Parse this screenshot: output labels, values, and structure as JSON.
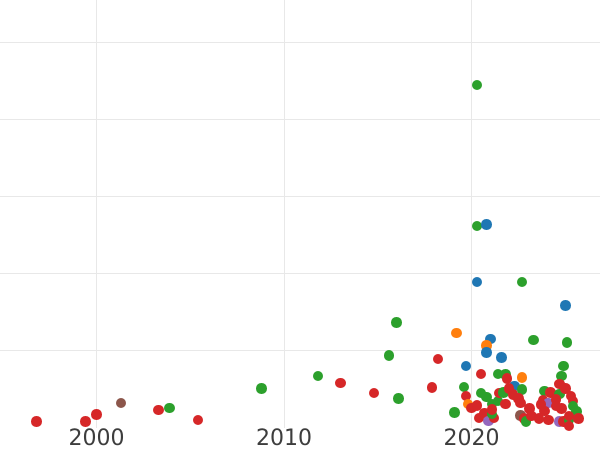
{
  "chart_data": {
    "type": "scatter",
    "grid": true,
    "legend": "none",
    "x_axis": {
      "ticks": [
        2000,
        2010,
        2020
      ],
      "tick_labels": [
        "2000",
        "2010",
        "2020"
      ],
      "visible_range": [
        1994.9,
        2026.9
      ]
    },
    "y_axis": {
      "tick_labels": [],
      "gridline_values": [
        1,
        2,
        3,
        4,
        5
      ],
      "visible_range": [
        -0.3,
        5.55
      ]
    },
    "colors": {
      "blue": "#1f77b4",
      "orange": "#ff7f0e",
      "green": "#2ca02c",
      "red": "#d62728",
      "purple": "#9467bd",
      "brown": "#8c564b"
    },
    "points": [
      {
        "x": 1996.8,
        "y": 0.07,
        "c": "red"
      },
      {
        "x": 1999.4,
        "y": 0.07,
        "c": "red"
      },
      {
        "x": 2000.0,
        "y": 0.16,
        "c": "red"
      },
      {
        "x": 2001.3,
        "y": 0.31,
        "c": "brown"
      },
      {
        "x": 2003.3,
        "y": 0.22,
        "c": "red"
      },
      {
        "x": 2003.9,
        "y": 0.25,
        "c": "green"
      },
      {
        "x": 2005.4,
        "y": 0.09,
        "c": "red"
      },
      {
        "x": 2008.8,
        "y": 0.5,
        "c": "green"
      },
      {
        "x": 2011.8,
        "y": 0.66,
        "c": "green"
      },
      {
        "x": 2013.0,
        "y": 0.57,
        "c": "red"
      },
      {
        "x": 2014.8,
        "y": 0.44,
        "c": "red"
      },
      {
        "x": 2016.1,
        "y": 0.37,
        "c": "green"
      },
      {
        "x": 2016.0,
        "y": 1.36,
        "c": "green"
      },
      {
        "x": 2015.6,
        "y": 0.93,
        "c": "green"
      },
      {
        "x": 2017.9,
        "y": 0.51,
        "c": "red"
      },
      {
        "x": 2018.2,
        "y": 0.88,
        "c": "red"
      },
      {
        "x": 2020.3,
        "y": 4.44,
        "c": "green"
      },
      {
        "x": 2020.3,
        "y": 2.61,
        "c": "green"
      },
      {
        "x": 2020.8,
        "y": 2.63,
        "c": "blue"
      },
      {
        "x": 2020.3,
        "y": 1.88,
        "c": "blue"
      },
      {
        "x": 2022.7,
        "y": 1.88,
        "c": "green"
      },
      {
        "x": 2025.0,
        "y": 1.58,
        "c": "blue"
      },
      {
        "x": 2023.3,
        "y": 1.13,
        "c": "green"
      },
      {
        "x": 2025.1,
        "y": 1.1,
        "c": "green"
      },
      {
        "x": 2019.2,
        "y": 1.22,
        "c": "orange"
      },
      {
        "x": 2021.0,
        "y": 1.14,
        "c": "blue"
      },
      {
        "x": 2020.8,
        "y": 1.06,
        "c": "orange"
      },
      {
        "x": 2020.8,
        "y": 0.97,
        "c": "blue"
      },
      {
        "x": 2021.6,
        "y": 0.9,
        "c": "blue"
      },
      {
        "x": 2019.7,
        "y": 0.79,
        "c": "blue"
      },
      {
        "x": 2024.9,
        "y": 0.79,
        "c": "green"
      },
      {
        "x": 2024.8,
        "y": 0.66,
        "c": "green"
      },
      {
        "x": 2024.7,
        "y": 0.56,
        "c": "red"
      },
      {
        "x": 2019.6,
        "y": 0.52,
        "c": "green"
      },
      {
        "x": 2019.7,
        "y": 0.4,
        "c": "red"
      },
      {
        "x": 2019.8,
        "y": 0.3,
        "c": "orange"
      },
      {
        "x": 2019.1,
        "y": 0.19,
        "c": "green"
      },
      {
        "x": 2020.5,
        "y": 0.69,
        "c": "red"
      },
      {
        "x": 2021.4,
        "y": 0.69,
        "c": "green"
      },
      {
        "x": 2021.8,
        "y": 0.68,
        "c": "green"
      },
      {
        "x": 2020.5,
        "y": 0.44,
        "c": "green"
      },
      {
        "x": 2020.8,
        "y": 0.39,
        "c": "green"
      },
      {
        "x": 2020.0,
        "y": 0.25,
        "c": "red"
      },
      {
        "x": 2020.3,
        "y": 0.28,
        "c": "red"
      },
      {
        "x": 2020.4,
        "y": 0.12,
        "c": "red"
      },
      {
        "x": 2020.7,
        "y": 0.18,
        "c": "red"
      },
      {
        "x": 2020.9,
        "y": 0.08,
        "c": "purple"
      },
      {
        "x": 2021.2,
        "y": 0.12,
        "c": "red"
      },
      {
        "x": 2021.1,
        "y": 0.17,
        "c": "green"
      },
      {
        "x": 2021.1,
        "y": 0.3,
        "c": "green"
      },
      {
        "x": 2021.4,
        "y": 0.34,
        "c": "green"
      },
      {
        "x": 2021.1,
        "y": 0.23,
        "c": "red"
      },
      {
        "x": 2021.5,
        "y": 0.44,
        "c": "red"
      },
      {
        "x": 2021.7,
        "y": 0.45,
        "c": "green"
      },
      {
        "x": 2021.9,
        "y": 0.63,
        "c": "red"
      },
      {
        "x": 2022.7,
        "y": 0.64,
        "c": "orange"
      },
      {
        "x": 2022.3,
        "y": 0.53,
        "c": "blue"
      },
      {
        "x": 2022.7,
        "y": 0.49,
        "c": "green"
      },
      {
        "x": 2022.0,
        "y": 0.5,
        "c": "red"
      },
      {
        "x": 2022.2,
        "y": 0.42,
        "c": "red"
      },
      {
        "x": 2022.5,
        "y": 0.37,
        "c": "red"
      },
      {
        "x": 2022.6,
        "y": 0.31,
        "c": "red"
      },
      {
        "x": 2021.8,
        "y": 0.3,
        "c": "red"
      },
      {
        "x": 2022.6,
        "y": 0.15,
        "c": "brown"
      },
      {
        "x": 2022.8,
        "y": 0.11,
        "c": "red"
      },
      {
        "x": 2023.1,
        "y": 0.24,
        "c": "red"
      },
      {
        "x": 2022.9,
        "y": 0.07,
        "c": "green"
      },
      {
        "x": 2023.9,
        "y": 0.47,
        "c": "green"
      },
      {
        "x": 2023.8,
        "y": 0.35,
        "c": "red"
      },
      {
        "x": 2024.1,
        "y": 0.31,
        "c": "purple"
      },
      {
        "x": 2023.9,
        "y": 0.21,
        "c": "red"
      },
      {
        "x": 2024.2,
        "y": 0.45,
        "c": "red"
      },
      {
        "x": 2024.7,
        "y": 0.43,
        "c": "green"
      },
      {
        "x": 2024.5,
        "y": 0.36,
        "c": "red"
      },
      {
        "x": 2024.5,
        "y": 0.27,
        "c": "red"
      },
      {
        "x": 2024.8,
        "y": 0.24,
        "c": "red"
      },
      {
        "x": 2023.2,
        "y": 0.14,
        "c": "red"
      },
      {
        "x": 2023.6,
        "y": 0.11,
        "c": "red"
      },
      {
        "x": 2024.1,
        "y": 0.09,
        "c": "red"
      },
      {
        "x": 2024.7,
        "y": 0.07,
        "c": "purple"
      },
      {
        "x": 2024.9,
        "y": 0.07,
        "c": "red"
      },
      {
        "x": 2025.2,
        "y": 0.09,
        "c": "green"
      },
      {
        "x": 2025.0,
        "y": 0.5,
        "c": "red"
      },
      {
        "x": 2025.3,
        "y": 0.4,
        "c": "red"
      },
      {
        "x": 2025.4,
        "y": 0.34,
        "c": "red"
      },
      {
        "x": 2025.4,
        "y": 0.27,
        "c": "green"
      },
      {
        "x": 2025.6,
        "y": 0.2,
        "c": "green"
      },
      {
        "x": 2025.2,
        "y": 0.14,
        "c": "red"
      },
      {
        "x": 2025.7,
        "y": 0.11,
        "c": "red"
      },
      {
        "x": 2025.2,
        "y": 0.01,
        "c": "red"
      },
      {
        "x": 2023.7,
        "y": 0.29,
        "c": "red"
      }
    ]
  },
  "style": {
    "background": "#ffffff",
    "grid_color": "#e8e8e8",
    "tick_label_color": "#3d3d3d"
  }
}
